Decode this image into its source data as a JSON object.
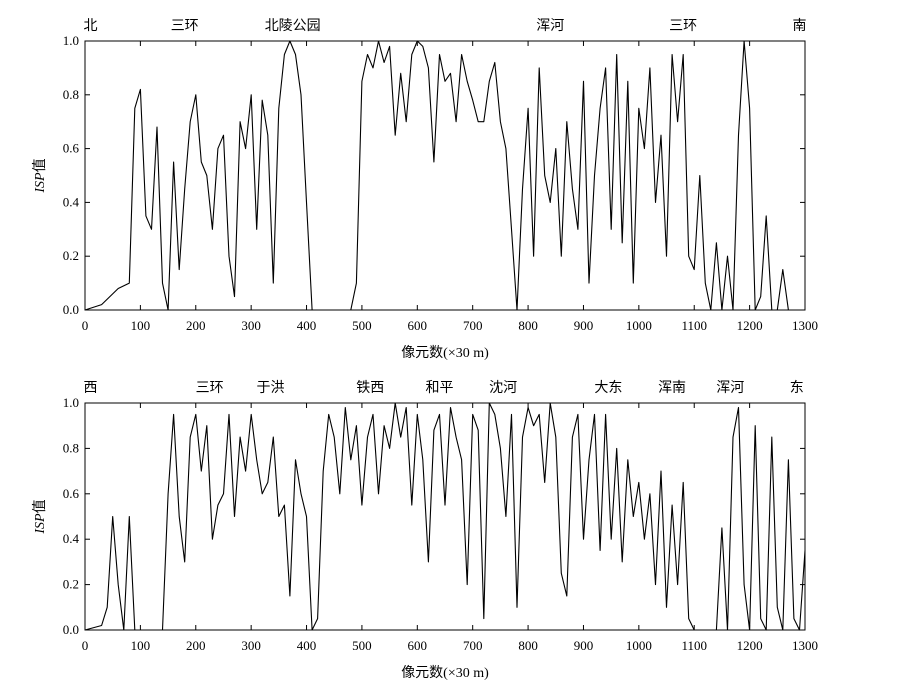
{
  "chart_data": [
    {
      "type": "line",
      "title": "",
      "xlabel": "像元数(×30 m)",
      "ylabel": "ISP值",
      "ylabel_parts": {
        "italic": "ISP",
        "normal": "值"
      },
      "xlim": [
        0,
        1300
      ],
      "ylim": [
        0,
        1.0
      ],
      "xticks": [
        "0",
        "100",
        "200",
        "300",
        "400",
        "500",
        "600",
        "700",
        "800",
        "900",
        "1000",
        "1100",
        "1200",
        "1300"
      ],
      "yticks": [
        "0.0",
        "0.2",
        "0.4",
        "0.6",
        "0.8",
        "1.0"
      ],
      "grid": false,
      "legend": "none",
      "annotations": [
        {
          "text": "北",
          "x": 10
        },
        {
          "text": "三环",
          "x": 180
        },
        {
          "text": "北陵公园",
          "x": 375
        },
        {
          "text": "浑河",
          "x": 840
        },
        {
          "text": "三环",
          "x": 1080
        },
        {
          "text": "南",
          "x": 1290
        }
      ],
      "series": [
        {
          "values_step": 5,
          "x": [
            0,
            30,
            60,
            80,
            90,
            100,
            110,
            120,
            130,
            140,
            150,
            160,
            170,
            180,
            190,
            200,
            210,
            220,
            230,
            240,
            250,
            260,
            270,
            280,
            290,
            300,
            310,
            320,
            330,
            340,
            350,
            360,
            370,
            380,
            390,
            400,
            410,
            420,
            480,
            490,
            500,
            510,
            520,
            530,
            540,
            550,
            560,
            570,
            580,
            590,
            600,
            610,
            620,
            630,
            640,
            650,
            660,
            670,
            680,
            690,
            700,
            710,
            720,
            730,
            740,
            750,
            760,
            770,
            780,
            790,
            800,
            810,
            820,
            830,
            840,
            850,
            860,
            870,
            880,
            890,
            900,
            910,
            920,
            930,
            940,
            950,
            960,
            970,
            980,
            990,
            1000,
            1010,
            1020,
            1030,
            1040,
            1050,
            1060,
            1070,
            1080,
            1090,
            1100,
            1110,
            1120,
            1130,
            1140,
            1150,
            1160,
            1170,
            1180,
            1190,
            1200,
            1210,
            1220,
            1230,
            1240,
            1250,
            1260,
            1270,
            1280
          ],
          "y": [
            0,
            0.02,
            0.08,
            0.1,
            0.75,
            0.82,
            0.35,
            0.3,
            0.68,
            0.1,
            0.0,
            0.55,
            0.15,
            0.45,
            0.7,
            0.8,
            0.55,
            0.5,
            0.3,
            0.6,
            0.65,
            0.2,
            0.05,
            0.7,
            0.6,
            0.8,
            0.3,
            0.78,
            0.65,
            0.1,
            0.75,
            0.95,
            1.0,
            0.95,
            0.8,
            0.4,
            0.0,
            0.0,
            0.0,
            0.1,
            0.85,
            0.95,
            0.9,
            1.0,
            0.92,
            0.98,
            0.65,
            0.88,
            0.7,
            0.95,
            1.0,
            0.98,
            0.9,
            0.55,
            0.95,
            0.85,
            0.88,
            0.7,
            0.95,
            0.85,
            0.78,
            0.7,
            0.7,
            0.85,
            0.92,
            0.7,
            0.6,
            0.3,
            0.0,
            0.45,
            0.75,
            0.2,
            0.9,
            0.5,
            0.4,
            0.6,
            0.2,
            0.7,
            0.45,
            0.3,
            0.85,
            0.1,
            0.5,
            0.75,
            0.9,
            0.3,
            0.95,
            0.25,
            0.85,
            0.1,
            0.75,
            0.6,
            0.9,
            0.4,
            0.65,
            0.2,
            0.95,
            0.7,
            0.95,
            0.2,
            0.15,
            0.5,
            0.1,
            0.0,
            0.25,
            0.0,
            0.2,
            0.0,
            0.65,
            1.0,
            0.75,
            0.0,
            0.05,
            0.35,
            0.0,
            0.0,
            0.15,
            0.0,
            0.0
          ]
        }
      ]
    },
    {
      "type": "line",
      "title": "",
      "xlabel": "像元数(×30 m)",
      "ylabel": "ISP值",
      "ylabel_parts": {
        "italic": "ISP",
        "normal": "值"
      },
      "xlim": [
        0,
        1300
      ],
      "ylim": [
        0,
        1.0
      ],
      "xticks": [
        "0",
        "100",
        "200",
        "300",
        "400",
        "500",
        "600",
        "700",
        "800",
        "900",
        "1000",
        "1100",
        "1200",
        "1300"
      ],
      "yticks": [
        "0.0",
        "0.2",
        "0.4",
        "0.6",
        "0.8",
        "1.0"
      ],
      "grid": false,
      "legend": "none",
      "annotations": [
        {
          "text": "西",
          "x": 10
        },
        {
          "text": "三环",
          "x": 225
        },
        {
          "text": "于洪",
          "x": 335
        },
        {
          "text": "铁西",
          "x": 515
        },
        {
          "text": "和平",
          "x": 640
        },
        {
          "text": "沈河",
          "x": 755
        },
        {
          "text": "大东",
          "x": 945
        },
        {
          "text": "浑南",
          "x": 1060
        },
        {
          "text": "浑河",
          "x": 1165
        },
        {
          "text": "东",
          "x": 1285
        }
      ],
      "series": [
        {
          "x": [
            0,
            30,
            40,
            50,
            60,
            70,
            80,
            90,
            140,
            150,
            160,
            170,
            180,
            190,
            200,
            210,
            220,
            230,
            240,
            250,
            260,
            270,
            280,
            290,
            300,
            310,
            320,
            330,
            340,
            350,
            360,
            370,
            380,
            390,
            400,
            410,
            420,
            430,
            440,
            450,
            460,
            470,
            480,
            490,
            500,
            510,
            520,
            530,
            540,
            550,
            560,
            570,
            580,
            590,
            600,
            610,
            620,
            630,
            640,
            650,
            660,
            670,
            680,
            690,
            700,
            710,
            720,
            730,
            740,
            750,
            760,
            770,
            780,
            790,
            800,
            810,
            820,
            830,
            840,
            850,
            860,
            870,
            880,
            890,
            900,
            910,
            920,
            930,
            940,
            950,
            960,
            970,
            980,
            990,
            1000,
            1010,
            1020,
            1030,
            1040,
            1050,
            1060,
            1070,
            1080,
            1090,
            1100,
            1140,
            1150,
            1160,
            1170,
            1180,
            1190,
            1200,
            1210,
            1220,
            1230,
            1240,
            1250,
            1260,
            1270,
            1280,
            1290,
            1300
          ],
          "y": [
            0,
            0.02,
            0.1,
            0.5,
            0.2,
            0.0,
            0.5,
            0.0,
            0.0,
            0.6,
            0.95,
            0.5,
            0.3,
            0.85,
            0.95,
            0.7,
            0.9,
            0.4,
            0.55,
            0.6,
            0.95,
            0.5,
            0.85,
            0.7,
            0.95,
            0.75,
            0.6,
            0.65,
            0.85,
            0.5,
            0.55,
            0.15,
            0.75,
            0.6,
            0.5,
            0.0,
            0.05,
            0.7,
            0.95,
            0.85,
            0.6,
            0.98,
            0.75,
            0.9,
            0.55,
            0.85,
            0.95,
            0.6,
            0.9,
            0.8,
            1.0,
            0.85,
            0.98,
            0.55,
            0.95,
            0.75,
            0.3,
            0.88,
            0.95,
            0.55,
            0.98,
            0.85,
            0.75,
            0.2,
            0.95,
            0.88,
            0.05,
            1.0,
            0.95,
            0.8,
            0.5,
            0.95,
            0.1,
            0.85,
            0.98,
            0.9,
            0.95,
            0.65,
            1.0,
            0.85,
            0.25,
            0.15,
            0.85,
            0.95,
            0.4,
            0.75,
            0.95,
            0.35,
            0.95,
            0.4,
            0.8,
            0.3,
            0.75,
            0.5,
            0.65,
            0.4,
            0.6,
            0.2,
            0.7,
            0.1,
            0.55,
            0.2,
            0.65,
            0.05,
            0.0,
            0.0,
            0.45,
            0.0,
            0.85,
            0.98,
            0.2,
            0.0,
            0.9,
            0.05,
            0.0,
            0.85,
            0.1,
            0.0,
            0.75,
            0.05,
            0.0,
            0.35
          ]
        }
      ]
    }
  ]
}
